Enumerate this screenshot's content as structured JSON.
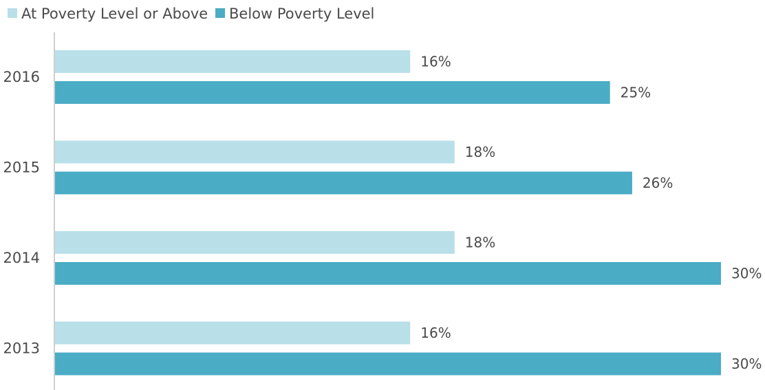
{
  "chart_data": {
    "type": "bar",
    "orientation": "horizontal",
    "categories": [
      "2016",
      "2015",
      "2014",
      "2013"
    ],
    "series": [
      {
        "name": "At Poverty Level or Above",
        "values": [
          16,
          18,
          18,
          16
        ],
        "labels": [
          "16%",
          "18%",
          "18%",
          "16%"
        ],
        "color": "#b9dfe8"
      },
      {
        "name": "Below Poverty Level",
        "values": [
          25,
          26,
          30,
          30
        ],
        "labels": [
          "25%",
          "26%",
          "30%",
          "30%"
        ],
        "color": "#4aacc5"
      }
    ],
    "xlim": [
      0,
      30
    ],
    "grid": false,
    "legend_position": "top-left",
    "title": "",
    "xlabel": "",
    "ylabel": ""
  }
}
